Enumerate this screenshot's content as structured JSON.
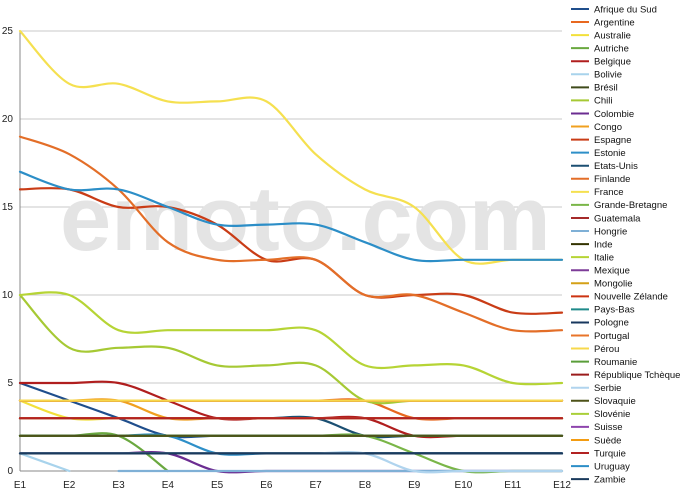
{
  "watermark": "emoto.com",
  "chart_data": {
    "type": "line",
    "categories": [
      "E1",
      "E2",
      "E3",
      "E4",
      "E5",
      "E6",
      "E7",
      "E8",
      "E9",
      "E10",
      "E11",
      "E12"
    ],
    "ylim": [
      0,
      25
    ],
    "yticks": [
      0,
      5,
      10,
      15,
      20,
      25
    ],
    "grid": true,
    "legend": "right",
    "series": [
      {
        "name": "Afrique du Sud",
        "color": "#1f4e8c",
        "values": [
          5,
          4,
          3,
          2,
          2,
          2,
          2,
          2,
          2,
          2,
          2,
          2
        ]
      },
      {
        "name": "Argentine",
        "color": "#e8681f",
        "values": [
          4,
          4,
          4,
          4,
          4,
          4,
          4,
          4,
          3,
          3,
          3,
          3
        ]
      },
      {
        "name": "Australie",
        "color": "#f2e03a",
        "values": [
          4,
          3,
          3,
          3,
          3,
          3,
          3,
          3,
          3,
          3,
          3,
          3
        ]
      },
      {
        "name": "Autriche",
        "color": "#6aa83f",
        "values": [
          2,
          2,
          2,
          0,
          null,
          null,
          null,
          null,
          null,
          null,
          null,
          null
        ]
      },
      {
        "name": "Belgique",
        "color": "#b01e1e",
        "values": [
          5,
          5,
          5,
          4,
          3,
          3,
          3,
          3,
          2,
          2,
          2,
          2
        ]
      },
      {
        "name": "Bolivie",
        "color": "#a8d3ec",
        "values": [
          1,
          0,
          null,
          null,
          null,
          null,
          null,
          null,
          null,
          null,
          null,
          null
        ]
      },
      {
        "name": "Brésil",
        "color": "#3f4a1a",
        "values": [
          2,
          2,
          2,
          2,
          2,
          2,
          2,
          2,
          2,
          2,
          2,
          2
        ]
      },
      {
        "name": "Chili",
        "color": "#a6c934",
        "values": [
          10,
          7,
          7,
          7,
          6,
          6,
          6,
          4,
          4,
          4,
          4,
          4
        ]
      },
      {
        "name": "Colombie",
        "color": "#6b2c91",
        "values": [
          1,
          1,
          1,
          1,
          0,
          0,
          0,
          0,
          0,
          0,
          0,
          0
        ]
      },
      {
        "name": "Congo",
        "color": "#f0a01f",
        "values": [
          4,
          4,
          4,
          3,
          3,
          3,
          3,
          3,
          3,
          3,
          3,
          3
        ]
      },
      {
        "name": "Espagne",
        "color": "#c93c16",
        "values": [
          16,
          16,
          15,
          15,
          14,
          12,
          12,
          10,
          10,
          10,
          9,
          9
        ]
      },
      {
        "name": "Estonie",
        "color": "#2e8fc8",
        "values": [
          2,
          2,
          2,
          2,
          1,
          1,
          1,
          1,
          1,
          1,
          1,
          1
        ]
      },
      {
        "name": "Etats-Unis",
        "color": "#1b4f72",
        "values": [
          3,
          3,
          3,
          3,
          3,
          3,
          3,
          2,
          2,
          2,
          2,
          2
        ]
      },
      {
        "name": "Finlande",
        "color": "#e36e28",
        "values": [
          19,
          18,
          16,
          13,
          12,
          12,
          12,
          10,
          10,
          9,
          8,
          8
        ]
      },
      {
        "name": "France",
        "color": "#f5e050",
        "values": [
          25,
          22,
          22,
          21,
          21,
          21,
          18,
          16,
          15,
          12,
          12,
          12
        ]
      },
      {
        "name": "Grande-Bretagne",
        "color": "#7ab648",
        "values": [
          2,
          2,
          2,
          2,
          2,
          2,
          2,
          2,
          1,
          0,
          0,
          0
        ]
      },
      {
        "name": "Guatemala",
        "color": "#a52a2a",
        "values": [
          4,
          4,
          4,
          4,
          4,
          4,
          4,
          4,
          4,
          4,
          4,
          4
        ]
      },
      {
        "name": "Hongrie",
        "color": "#7fb0d6",
        "values": [
          null,
          null,
          0,
          0,
          0,
          0,
          0,
          0,
          0,
          0,
          0,
          0
        ]
      },
      {
        "name": "Inde",
        "color": "#333300",
        "values": [
          2,
          2,
          2,
          2,
          2,
          2,
          2,
          2,
          2,
          2,
          2,
          2
        ]
      },
      {
        "name": "Italie",
        "color": "#b6d435",
        "values": [
          10,
          10,
          8,
          8,
          8,
          8,
          8,
          6,
          6,
          6,
          5,
          5
        ]
      },
      {
        "name": "Mexique",
        "color": "#7d3c98",
        "values": [
          3,
          3,
          3,
          3,
          3,
          3,
          3,
          3,
          3,
          3,
          3,
          3
        ]
      },
      {
        "name": "Mongolie",
        "color": "#d4a017",
        "values": [
          4,
          4,
          4,
          4,
          4,
          4,
          4,
          4,
          4,
          4,
          4,
          4
        ]
      },
      {
        "name": "Nouvelle Zélande",
        "color": "#cc3311",
        "values": [
          4,
          4,
          4,
          4,
          4,
          4,
          4,
          4,
          4,
          4,
          4,
          4
        ]
      },
      {
        "name": "Pays-Bas",
        "color": "#1f8a8a",
        "values": [
          2,
          2,
          2,
          2,
          2,
          2,
          2,
          2,
          2,
          2,
          2,
          2
        ]
      },
      {
        "name": "Pologne",
        "color": "#17375e",
        "values": [
          1,
          1,
          1,
          1,
          1,
          1,
          1,
          1,
          1,
          1,
          1,
          1
        ]
      },
      {
        "name": "Portugal",
        "color": "#e8742a",
        "values": [
          3,
          3,
          3,
          3,
          3,
          3,
          3,
          3,
          3,
          3,
          3,
          3
        ]
      },
      {
        "name": "Pérou",
        "color": "#f7d84c",
        "values": [
          4,
          4,
          4,
          4,
          4,
          4,
          4,
          4,
          4,
          4,
          4,
          4
        ]
      },
      {
        "name": "Roumanie",
        "color": "#5a9e3a",
        "values": [
          2,
          2,
          2,
          2,
          2,
          2,
          2,
          2,
          2,
          2,
          2,
          2
        ]
      },
      {
        "name": "République Tchèque",
        "color": "#9b1c1c",
        "values": [
          3,
          3,
          3,
          3,
          3,
          3,
          3,
          3,
          3,
          3,
          3,
          3
        ]
      },
      {
        "name": "Serbie",
        "color": "#b0d4ee",
        "values": [
          1,
          1,
          1,
          1,
          1,
          1,
          1,
          1,
          0,
          0,
          0,
          0
        ]
      },
      {
        "name": "Slovaquie",
        "color": "#4d5219",
        "values": [
          2,
          2,
          2,
          2,
          2,
          2,
          2,
          2,
          2,
          2,
          2,
          2
        ]
      },
      {
        "name": "Slovénie",
        "color": "#a9cf38",
        "values": [
          3,
          3,
          3,
          3,
          3,
          3,
          3,
          3,
          3,
          3,
          3,
          3
        ]
      },
      {
        "name": "Suisse",
        "color": "#8e44ad",
        "values": [
          3,
          3,
          3,
          3,
          3,
          3,
          3,
          3,
          3,
          3,
          3,
          3
        ]
      },
      {
        "name": "Suède",
        "color": "#f39c12",
        "values": [
          3,
          3,
          3,
          3,
          3,
          3,
          3,
          3,
          3,
          3,
          3,
          3
        ]
      },
      {
        "name": "Turquie",
        "color": "#b22222",
        "values": [
          3,
          3,
          3,
          3,
          3,
          3,
          3,
          3,
          3,
          3,
          3,
          3
        ]
      },
      {
        "name": "Uruguay",
        "color": "#2c8ec7",
        "values": [
          17,
          16,
          16,
          15,
          14,
          14,
          14,
          13,
          12,
          12,
          12,
          12
        ]
      },
      {
        "name": "Zambie",
        "color": "#1a3a5c",
        "values": [
          1,
          1,
          1,
          1,
          1,
          1,
          1,
          1,
          1,
          1,
          1,
          1
        ]
      }
    ]
  }
}
